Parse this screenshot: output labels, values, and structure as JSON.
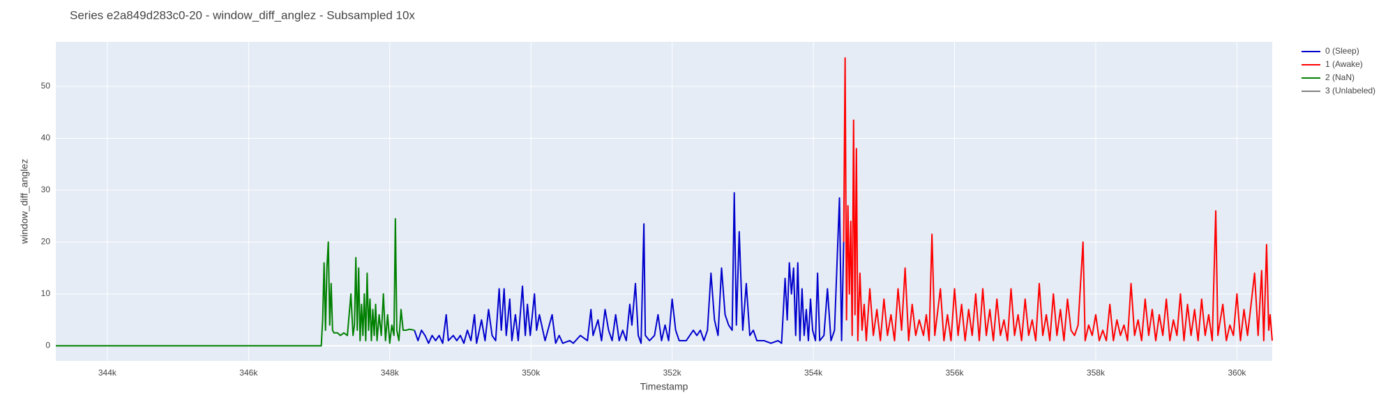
{
  "chart_data": {
    "type": "line",
    "title": "Series e2a849d283c0-20 - window_diff_anglez - Subsampled 10x",
    "x_label": "Timestamp",
    "y_label": "window_diff_anglez",
    "xlim": [
      343270,
      360500
    ],
    "ylim": [
      -2.9,
      58.6
    ],
    "xticks": [
      {
        "value": 344000,
        "label": "344k"
      },
      {
        "value": 346000,
        "label": "346k"
      },
      {
        "value": 348000,
        "label": "348k"
      },
      {
        "value": 350000,
        "label": "350k"
      },
      {
        "value": 352000,
        "label": "352k"
      },
      {
        "value": 354000,
        "label": "354k"
      },
      {
        "value": 356000,
        "label": "356k"
      },
      {
        "value": 358000,
        "label": "358k"
      },
      {
        "value": 360000,
        "label": "360k"
      }
    ],
    "yticks": [
      0,
      10,
      20,
      30,
      40,
      50
    ],
    "grid": true,
    "legend": "right",
    "plot_background": "#e5ecf6",
    "series": [
      {
        "name": "0 (Sleep)",
        "color": "#0000cc",
        "x": [
          348350,
          348400,
          348450,
          348500,
          348550,
          348600,
          348650,
          348700,
          348750,
          348800,
          348830,
          348900,
          348950,
          349000,
          349050,
          349100,
          349150,
          349200,
          349230,
          349300,
          349350,
          349400,
          349450,
          349500,
          349550,
          349580,
          349620,
          349650,
          349700,
          349730,
          349780,
          349820,
          349880,
          349920,
          349950,
          349990,
          350050,
          350080,
          350120,
          350200,
          350300,
          350350,
          350400,
          350450,
          350550,
          350600,
          350700,
          350800,
          350850,
          350880,
          350950,
          351000,
          351050,
          351100,
          351150,
          351200,
          351250,
          351300,
          351350,
          351400,
          351430,
          351480,
          351520,
          351560,
          351600,
          351620,
          351680,
          351750,
          351800,
          351850,
          351900,
          351950,
          352000,
          352050,
          352100,
          352200,
          352300,
          352350,
          352400,
          352450,
          352500,
          352550,
          352600,
          352650,
          352700,
          352750,
          352800,
          352850,
          352880,
          352910,
          352950,
          353000,
          353050,
          353100,
          353150,
          353200,
          353300,
          353400,
          353500,
          353550,
          353600,
          353630,
          353660,
          353690,
          353720,
          353750,
          353780,
          353810,
          353840,
          353870,
          353900,
          353930,
          353960,
          353990,
          354030,
          354060,
          354090,
          354150,
          354200,
          354250,
          354300,
          354370,
          354400,
          354430
        ],
        "values": [
          3,
          1,
          3,
          2,
          0.5,
          2,
          1,
          2,
          0.5,
          6,
          1,
          2,
          1,
          2,
          0.5,
          3,
          1,
          6,
          0.5,
          5,
          1,
          7,
          2,
          1,
          11,
          3,
          11,
          2,
          9,
          1,
          6,
          1,
          11.5,
          2,
          8,
          2,
          10,
          3,
          6,
          1,
          6,
          0.5,
          2,
          0.5,
          1,
          0.5,
          2,
          1,
          7,
          2,
          5,
          1,
          7,
          3,
          1,
          6,
          1,
          3,
          1,
          8,
          4,
          12,
          2,
          0.5,
          23.5,
          2,
          1,
          2,
          6,
          1,
          4,
          1,
          9,
          3,
          1,
          1,
          3,
          2,
          3,
          1,
          3,
          14,
          5,
          2,
          15,
          6,
          4,
          3,
          29.5,
          4,
          22,
          3,
          12,
          2,
          3,
          1,
          1,
          0.5,
          1,
          0.5,
          13,
          5,
          16,
          10,
          15,
          2,
          16,
          1,
          11,
          2,
          7,
          1,
          9,
          3,
          1,
          14,
          1,
          2,
          11,
          1,
          3,
          28.5,
          1,
          20
        ]
      },
      {
        "name": "1 (Awake)",
        "color": "#ff0000",
        "x": [
          354430,
          354450,
          354470,
          354490,
          354510,
          354530,
          354550,
          354570,
          354590,
          354610,
          354630,
          354660,
          354690,
          354720,
          354750,
          354800,
          354850,
          354900,
          354950,
          355000,
          355050,
          355100,
          355150,
          355200,
          355250,
          355300,
          355350,
          355400,
          355450,
          355500,
          355560,
          355600,
          355640,
          355680,
          355720,
          355800,
          355850,
          355900,
          355950,
          356000,
          356050,
          356100,
          356150,
          356200,
          356250,
          356300,
          356350,
          356400,
          356450,
          356500,
          356550,
          356600,
          356650,
          356700,
          356750,
          356800,
          356850,
          356900,
          356950,
          357000,
          357050,
          357100,
          357150,
          357200,
          357250,
          357300,
          357350,
          357400,
          357450,
          357500,
          357550,
          357600,
          357650,
          357700,
          357750,
          357820,
          357850,
          357900,
          357950,
          358000,
          358050,
          358100,
          358150,
          358200,
          358250,
          358300,
          358350,
          358400,
          358450,
          358500,
          358550,
          358600,
          358650,
          358700,
          358750,
          358800,
          358850,
          358900,
          358950,
          359000,
          359050,
          359100,
          359150,
          359200,
          359250,
          359300,
          359350,
          359400,
          359450,
          359500,
          359550,
          359600,
          359650,
          359700,
          359730,
          359800,
          359850,
          359900,
          359950,
          360000,
          360050,
          360100,
          360150,
          360250,
          360300,
          360350,
          360380,
          360420,
          360450,
          360470,
          360500
        ],
        "values": [
          20,
          55.5,
          5,
          27,
          10,
          24,
          2,
          43.5,
          6,
          38,
          1,
          14,
          3,
          8,
          1,
          11,
          2,
          7,
          1,
          9,
          2,
          6,
          1,
          11,
          3,
          15,
          1,
          8,
          2,
          5,
          2,
          6,
          1,
          21.5,
          2,
          11,
          1,
          6,
          1,
          11,
          2,
          8,
          1,
          7,
          2,
          10,
          1,
          11,
          2,
          7,
          1,
          9,
          2,
          5,
          1,
          11,
          2,
          6,
          1,
          9,
          2,
          5,
          1,
          12,
          2,
          6,
          1,
          10,
          2,
          7,
          1,
          9,
          3,
          2,
          4,
          20,
          1,
          4,
          2,
          6,
          1,
          3,
          1,
          8,
          1,
          5,
          2,
          4,
          1,
          12,
          2,
          5,
          1,
          9,
          2,
          7,
          1,
          6,
          2,
          9,
          1,
          5,
          2,
          10,
          1,
          8,
          2,
          7,
          1,
          9,
          2,
          6,
          1,
          26,
          2,
          8,
          1,
          4,
          2,
          10,
          1,
          7,
          2,
          14,
          2,
          14.5,
          1,
          19.5,
          3,
          6,
          1
        ]
      },
      {
        "name": "2 (NaN)",
        "color": "#008000",
        "x": [
          343270,
          347030,
          347050,
          347070,
          347090,
          347110,
          347130,
          347150,
          347170,
          347190,
          347210,
          347260,
          347300,
          347350,
          347400,
          347450,
          347480,
          347500,
          347520,
          347540,
          347560,
          347580,
          347600,
          347620,
          347640,
          347660,
          347680,
          347700,
          347720,
          347740,
          347760,
          347780,
          347800,
          347820,
          347850,
          347880,
          347910,
          347940,
          347970,
          348000,
          348030,
          348060,
          348080,
          348100,
          348130,
          348160,
          348190,
          348230,
          348280,
          348350
        ],
        "values": [
          0,
          0,
          5,
          16,
          3,
          15,
          20,
          4,
          12,
          3,
          2.5,
          2.5,
          2,
          2.5,
          2,
          10,
          2,
          4,
          17,
          3,
          15,
          1,
          8,
          2,
          10,
          1,
          14,
          3,
          9,
          1,
          7,
          2,
          8,
          1,
          6,
          2,
          10,
          1,
          6,
          0.5,
          4,
          2,
          24.5,
          3,
          1,
          7,
          3,
          3,
          3.2,
          3
        ]
      },
      {
        "name": "3 (Unlabeled)",
        "color": "#808080",
        "x": [],
        "values": []
      }
    ]
  }
}
